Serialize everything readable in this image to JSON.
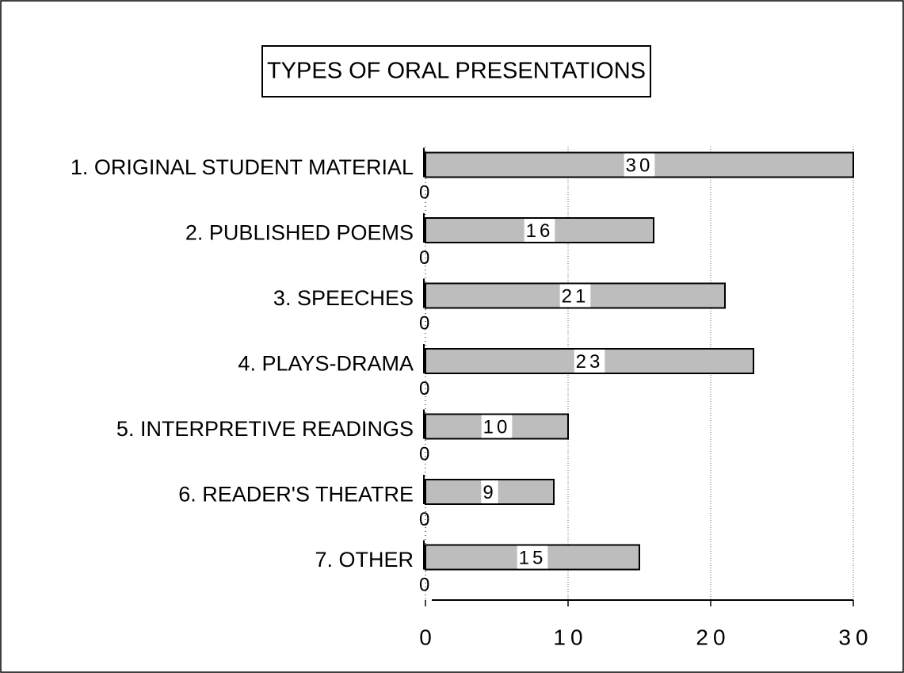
{
  "chart_data": {
    "type": "bar",
    "orientation": "horizontal",
    "title": "TYPES OF ORAL PRESENTATIONS",
    "categories": [
      "1. ORIGINAL STUDENT MATERIAL",
      "2. PUBLISHED POEMS",
      "3. SPEECHES",
      "4.  PLAYS-DRAMA",
      "5. INTERPRETIVE READINGS",
      "6. READER'S THEATRE",
      "7. OTHER"
    ],
    "values": [
      30,
      16,
      21,
      23,
      10,
      9,
      15
    ],
    "annotations": [
      "0",
      "0",
      "0",
      "0",
      "0",
      "0",
      "0"
    ],
    "color": "#bdbdbd",
    "xlim": [
      0,
      30
    ],
    "xticks": [
      0,
      10,
      20,
      30
    ],
    "grid": true
  }
}
